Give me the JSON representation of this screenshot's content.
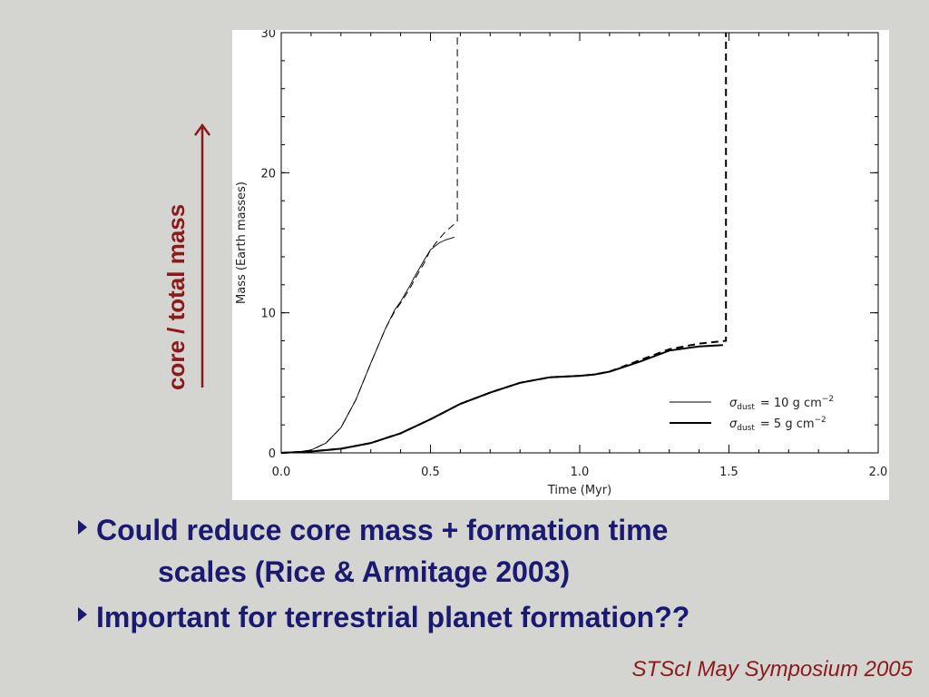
{
  "slide": {
    "side_label": "core / total mass",
    "bullets": [
      {
        "line1": "Could reduce core mass + formation time",
        "line2": "scales (Rice & Armitage 2003)"
      },
      {
        "line1": "Important for terrestrial planet formation??",
        "line2": ""
      }
    ],
    "footer": "STScI May Symposium 2005"
  },
  "colors": {
    "background": "#d4d4d0",
    "bullet_text": "#1a1a72",
    "accent": "#8b1a1a"
  },
  "chart_data": {
    "type": "line",
    "xlabel": "Time (Myr)",
    "ylabel": "Mass (Earth masses)",
    "xlim": [
      0,
      2.0
    ],
    "ylim": [
      0,
      30
    ],
    "xticks": [
      "0.0",
      "0.5",
      "1.0",
      "1.5",
      "2.0"
    ],
    "yticks": [
      "0",
      "10",
      "20",
      "30"
    ],
    "legend_position": "bottom-right",
    "legend": [
      {
        "symbol": "σ",
        "sub": "dust",
        "text": "= 10 g cm",
        "sup": "−2",
        "thick": false
      },
      {
        "symbol": "σ",
        "sub": "dust",
        "text": "= 5 g cm",
        "sup": "−2",
        "thick": true
      }
    ],
    "series": [
      {
        "style": "thin-solid",
        "x": [
          0,
          0.05,
          0.1,
          0.15,
          0.2,
          0.25,
          0.3,
          0.35,
          0.38,
          0.4,
          0.43,
          0.45,
          0.48,
          0.5,
          0.53,
          0.55,
          0.58
        ],
        "y": [
          0,
          0.05,
          0.2,
          0.7,
          1.8,
          3.8,
          6.4,
          8.9,
          10.2,
          10.8,
          11.9,
          12.7,
          13.8,
          14.5,
          15.0,
          15.2,
          15.4
        ]
      },
      {
        "style": "thin-dashed",
        "x": [
          0,
          0.05,
          0.1,
          0.15,
          0.2,
          0.25,
          0.3,
          0.35,
          0.38,
          0.4,
          0.43,
          0.45,
          0.48,
          0.5,
          0.53,
          0.55,
          0.59,
          0.59
        ],
        "y": [
          0,
          0.05,
          0.2,
          0.7,
          1.8,
          3.8,
          6.4,
          8.9,
          10.1,
          10.7,
          11.7,
          12.5,
          13.6,
          14.5,
          15.3,
          15.8,
          16.5,
          30
        ]
      },
      {
        "style": "thick-solid",
        "x": [
          0,
          0.1,
          0.2,
          0.3,
          0.4,
          0.5,
          0.6,
          0.7,
          0.8,
          0.9,
          1.0,
          1.05,
          1.1,
          1.2,
          1.3,
          1.4,
          1.48
        ],
        "y": [
          0,
          0.1,
          0.3,
          0.7,
          1.4,
          2.4,
          3.5,
          4.3,
          5.0,
          5.4,
          5.5,
          5.6,
          5.8,
          6.5,
          7.3,
          7.6,
          7.7
        ]
      },
      {
        "style": "thick-dashed",
        "x": [
          0,
          0.1,
          0.2,
          0.3,
          0.4,
          0.5,
          0.6,
          0.7,
          0.8,
          0.9,
          1.0,
          1.05,
          1.1,
          1.2,
          1.3,
          1.4,
          1.49,
          1.49
        ],
        "y": [
          0,
          0.1,
          0.3,
          0.7,
          1.4,
          2.4,
          3.5,
          4.3,
          5.0,
          5.4,
          5.5,
          5.6,
          5.8,
          6.6,
          7.4,
          7.8,
          8.0,
          30
        ]
      }
    ]
  }
}
